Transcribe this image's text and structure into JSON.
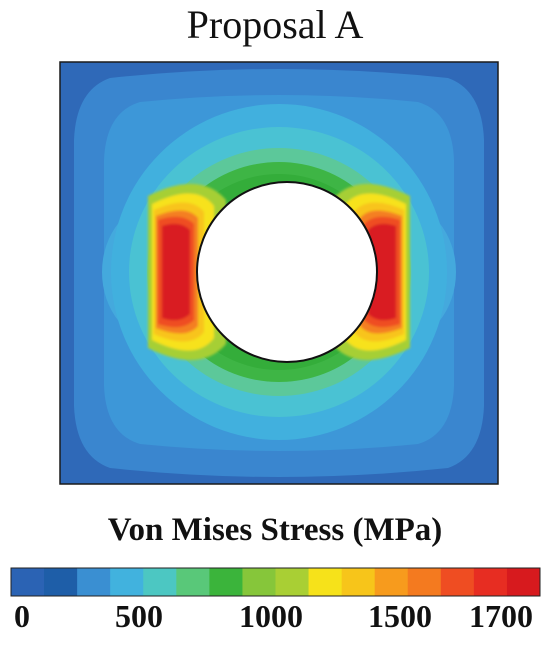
{
  "figure": {
    "title": "Proposal A",
    "colorbar": {
      "title": "Von Mises Stress (MPa)",
      "tick_labels": [
        "0",
        "500",
        "1000",
        "1500",
        "1700"
      ],
      "colors": [
        "#2b63b4",
        "#1e5ea8",
        "#3a8fd2",
        "#41b2de",
        "#4cc7c2",
        "#59c879",
        "#3bb43b",
        "#86c63a",
        "#a9cf34",
        "#f6e21a",
        "#f7c51a",
        "#f79b1d",
        "#f47a1f",
        "#ef4d22",
        "#e72d22",
        "#d71a1e"
      ]
    }
  }
}
